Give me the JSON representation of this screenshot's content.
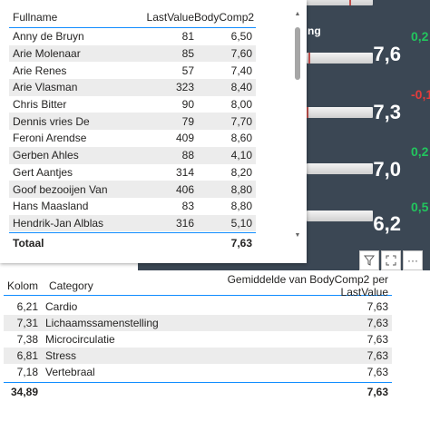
{
  "dashboard": {
    "partial_label": "ng",
    "metrics": [
      {
        "value": "7,6",
        "delta": "0,2",
        "delta_sign": "pos"
      },
      {
        "value": "7,3",
        "delta": "-0,1",
        "delta_sign": "neg"
      },
      {
        "value": "7,0",
        "delta": "0,2",
        "delta_sign": "pos"
      },
      {
        "value": "6,2",
        "delta": "0,5",
        "delta_sign": "pos"
      }
    ],
    "delta_colors": {
      "positive": "#22c55e",
      "negative": "#e23b3b"
    },
    "background_color": "#3b4754"
  },
  "visual_header": {
    "icons": [
      "filter-icon",
      "focus-mode-icon",
      "more-options-icon"
    ],
    "more_label": "···"
  },
  "table1": {
    "columns": [
      "Fullname",
      "LastValue",
      "BodyComp2"
    ],
    "rows": [
      {
        "name": "Anny de Bruyn",
        "last": "81",
        "body": "6,50"
      },
      {
        "name": "Arie Molenaar",
        "last": "85",
        "body": "7,60"
      },
      {
        "name": "Arie Renes",
        "last": "57",
        "body": "7,40"
      },
      {
        "name": "Arie Vlasman",
        "last": "323",
        "body": "8,40"
      },
      {
        "name": "Chris Bitter",
        "last": "90",
        "body": "8,00"
      },
      {
        "name": "Dennis vries De",
        "last": "79",
        "body": "7,70"
      },
      {
        "name": "Feroni Arendse",
        "last": "409",
        "body": "8,60"
      },
      {
        "name": "Gerben Ahles",
        "last": "88",
        "body": "4,10"
      },
      {
        "name": "Gert Aantjes",
        "last": "314",
        "body": "8,20"
      },
      {
        "name": "Goof bezooijen Van",
        "last": "406",
        "body": "8,80"
      },
      {
        "name": "Hans Maasland",
        "last": "83",
        "body": "8,80"
      },
      {
        "name": "Hendrik-Jan Alblas",
        "last": "316",
        "body": "5,10"
      }
    ],
    "total": {
      "label": "Totaal",
      "last": "",
      "body": "7,63"
    },
    "accent_color": "#118dff"
  },
  "table2": {
    "columns": [
      "Kolom",
      "Category",
      "Gemiddelde van BodyComp2 per LastValue"
    ],
    "rows": [
      {
        "kolom": "6,21",
        "category": "Cardio",
        "avg": "7,63"
      },
      {
        "kolom": "7,31",
        "category": "Lichaamssamenstelling",
        "avg": "7,63"
      },
      {
        "kolom": "7,38",
        "category": "Microcirculatie",
        "avg": "7,63"
      },
      {
        "kolom": "6,81",
        "category": "Stress",
        "avg": "7,63"
      },
      {
        "kolom": "7,18",
        "category": "Vertebraal",
        "avg": "7,63"
      }
    ],
    "total": {
      "kolom": "34,89",
      "category": "",
      "avg": "7,63"
    }
  }
}
